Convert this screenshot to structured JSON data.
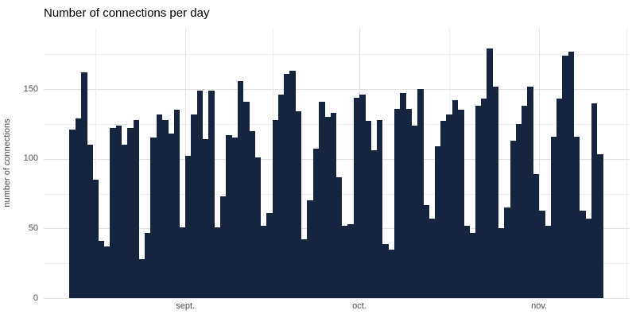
{
  "title": "Number of connections per day",
  "colors": {
    "bar": "#162440",
    "grid_major": "#e2e2e2",
    "grid_minor": "#efefef",
    "axis_text": "#4d4d4d",
    "title_text": "#000000",
    "background": "#ffffff"
  },
  "chart_data": {
    "type": "bar",
    "title": "Number of connections per day",
    "xlabel": "",
    "ylabel": "number of connections",
    "ylim": [
      0,
      183
    ],
    "grid": true,
    "legend": false,
    "y_ticks": [
      0,
      50,
      100,
      150
    ],
    "y_minor_ticks": [
      25,
      75,
      125,
      175
    ],
    "x_ticks": [
      {
        "label": "sept.",
        "day": 20
      },
      {
        "label": "oct.",
        "day": 50
      },
      {
        "label": "nov.",
        "day": 81
      }
    ],
    "x_minor_tick_days": [
      4.5,
      35,
      65.5,
      96
    ],
    "values": [
      121,
      129,
      162,
      110,
      85,
      41,
      37,
      122,
      124,
      110,
      122,
      128,
      28,
      47,
      115,
      132,
      128,
      118,
      135,
      51,
      102,
      132,
      149,
      114,
      149,
      51,
      73,
      117,
      115,
      156,
      141,
      120,
      101,
      52,
      61,
      128,
      146,
      161,
      163,
      134,
      42,
      70,
      107,
      141,
      130,
      133,
      87,
      52,
      53,
      144,
      146,
      127,
      106,
      128,
      39,
      35,
      136,
      147,
      136,
      124,
      150,
      67,
      57,
      109,
      127,
      132,
      142,
      135,
      52,
      47,
      138,
      143,
      179,
      152,
      50,
      65,
      113,
      125,
      138,
      152,
      89,
      63,
      52,
      116,
      143,
      174,
      177,
      116,
      63,
      57,
      140,
      103
    ]
  }
}
